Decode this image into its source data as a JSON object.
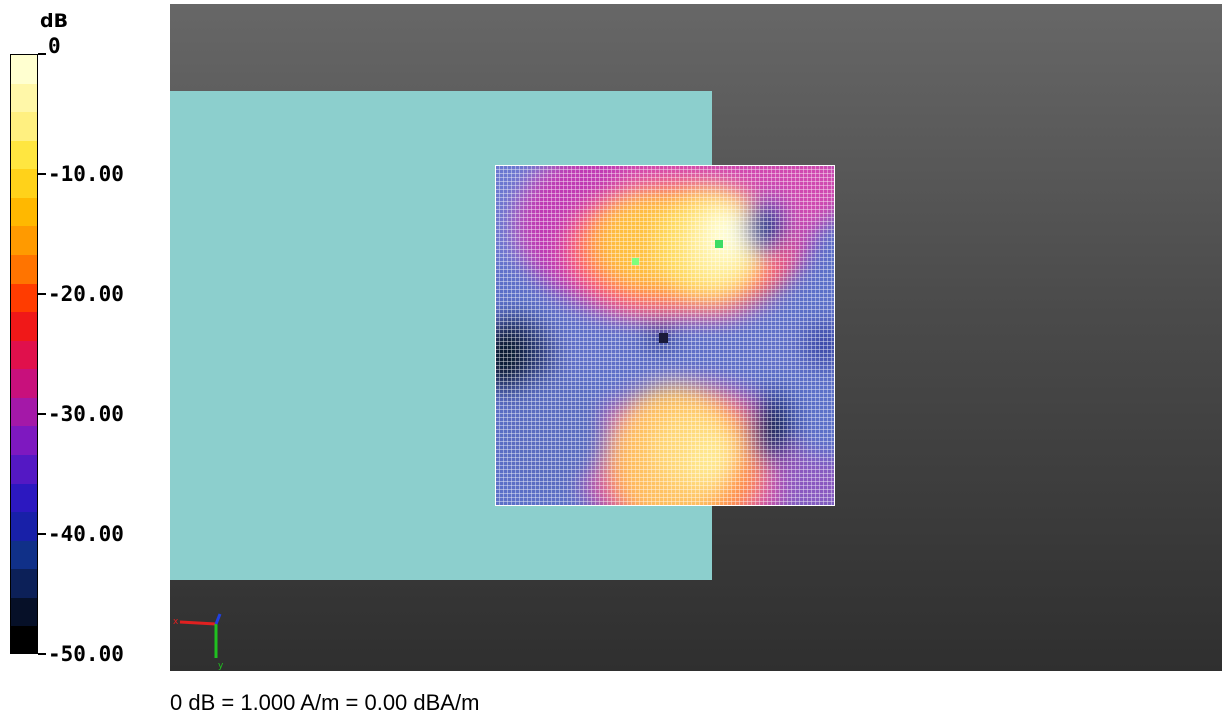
{
  "legend": {
    "unit": "dB",
    "labels": [
      "0",
      "-10.00",
      "-20.00",
      "-30.00",
      "-40.00",
      "-50.00"
    ],
    "value_range_db": [
      0,
      -50
    ],
    "colors": [
      "#ffffd0",
      "#fff7a8",
      "#fff080",
      "#ffe640",
      "#ffd21a",
      "#ffb800",
      "#ff9a00",
      "#ff7400",
      "#ff3c00",
      "#f01818",
      "#e0104c",
      "#c8107c",
      "#a418a8",
      "#7e18c0",
      "#5418c4",
      "#2c18c0",
      "#1820a8",
      "#103088",
      "#0c2058",
      "#061028",
      "#000000"
    ]
  },
  "viewport": {
    "phantom_color": "#8ccfcd",
    "background_top": "#676767",
    "background_bottom": "#2f2f2f",
    "field_map_type": "H-field distribution heatmap",
    "axis_triad": {
      "x_label": "x",
      "y_label": "y",
      "x_color": "#e02020",
      "y_color": "#20c020",
      "z_color": "#2040e0"
    }
  },
  "footer": {
    "caption": "0 dB = 1.000 A/m = 0.00 dBA/m"
  }
}
